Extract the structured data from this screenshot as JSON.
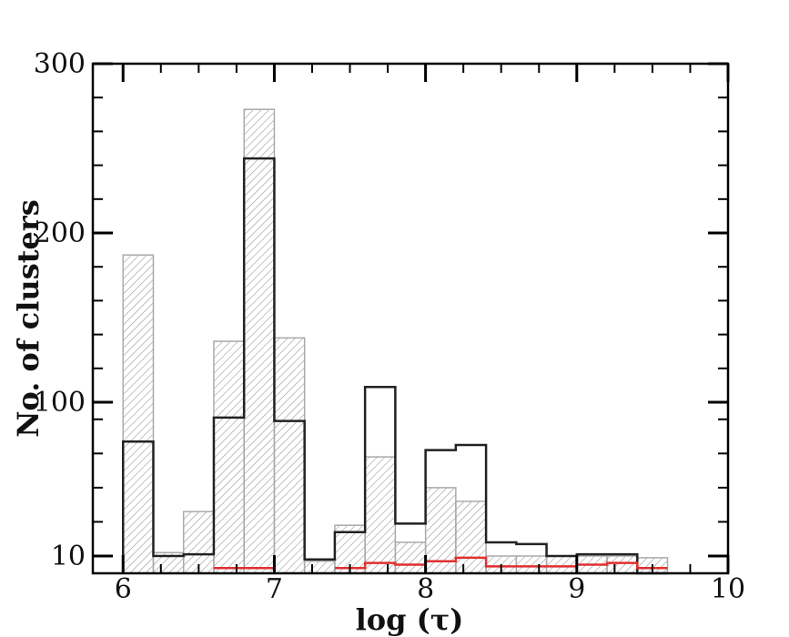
{
  "chart_data": {
    "type": "bar",
    "xlabel": "log (τ)",
    "ylabel": "No. of clusters",
    "xlim": [
      5.8,
      10
    ],
    "ylim": [
      0,
      300
    ],
    "y_scale": "nonlinear (10→100 compressed)",
    "x_ticks": [
      "6",
      "7",
      "8",
      "9",
      "10"
    ],
    "y_ticks": [
      "10",
      "100",
      "200",
      "300"
    ],
    "bin_edges": [
      6.0,
      6.2,
      6.4,
      6.6,
      6.8,
      7.0,
      7.2,
      7.4,
      7.6,
      7.8,
      8.0,
      8.2,
      8.4,
      8.6,
      8.8,
      9.0,
      9.2,
      9.4,
      9.6
    ],
    "series": [
      {
        "style": "hatched-gray",
        "color": "#aaaaaa",
        "values": [
          187,
          12,
          36,
          136,
          273,
          138,
          7,
          28,
          68,
          18,
          50,
          42,
          10,
          10,
          10,
          10,
          10,
          9
        ]
      },
      {
        "style": "black-step",
        "color": "#222222",
        "values": [
          77,
          10,
          11,
          91,
          244,
          89,
          8,
          24,
          109,
          29,
          72,
          75,
          18,
          17,
          10,
          11,
          11,
          0
        ]
      },
      {
        "style": "red-step",
        "color": "#e03030",
        "values": [
          0,
          0,
          0,
          3,
          3,
          0,
          0,
          3,
          6,
          5,
          7,
          9,
          4,
          4,
          4,
          5,
          6,
          3
        ]
      }
    ]
  }
}
